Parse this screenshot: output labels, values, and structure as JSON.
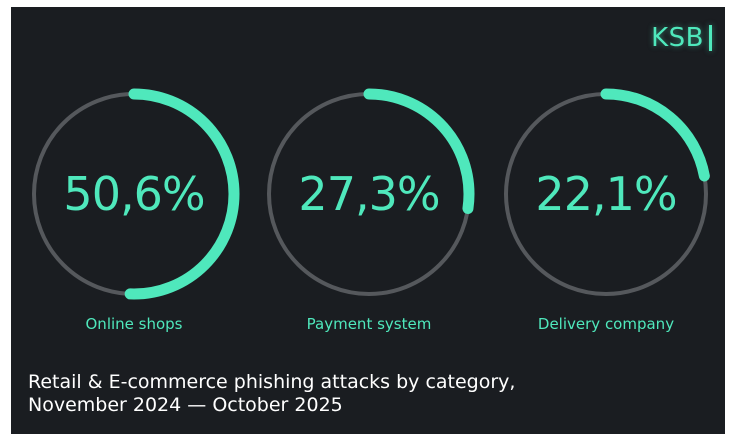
{
  "logo": {
    "text": "KSB"
  },
  "chart_data": {
    "type": "pie",
    "title": "Retail & E-commerce phishing attacks by category,",
    "subtitle": "November 2024 — October 2025",
    "categories": [
      "Online shops",
      "Payment system",
      "Delivery company"
    ],
    "values": [
      50.6,
      27.3,
      22.1
    ],
    "value_labels": [
      "50,6%",
      "27,3%",
      "22,1%"
    ],
    "unit": "%",
    "legend": "none",
    "grid": false
  },
  "colors": {
    "background": "#1a1d21",
    "accent": "#4fe8bc",
    "track": "#55585c",
    "caption": "#ffffff"
  }
}
